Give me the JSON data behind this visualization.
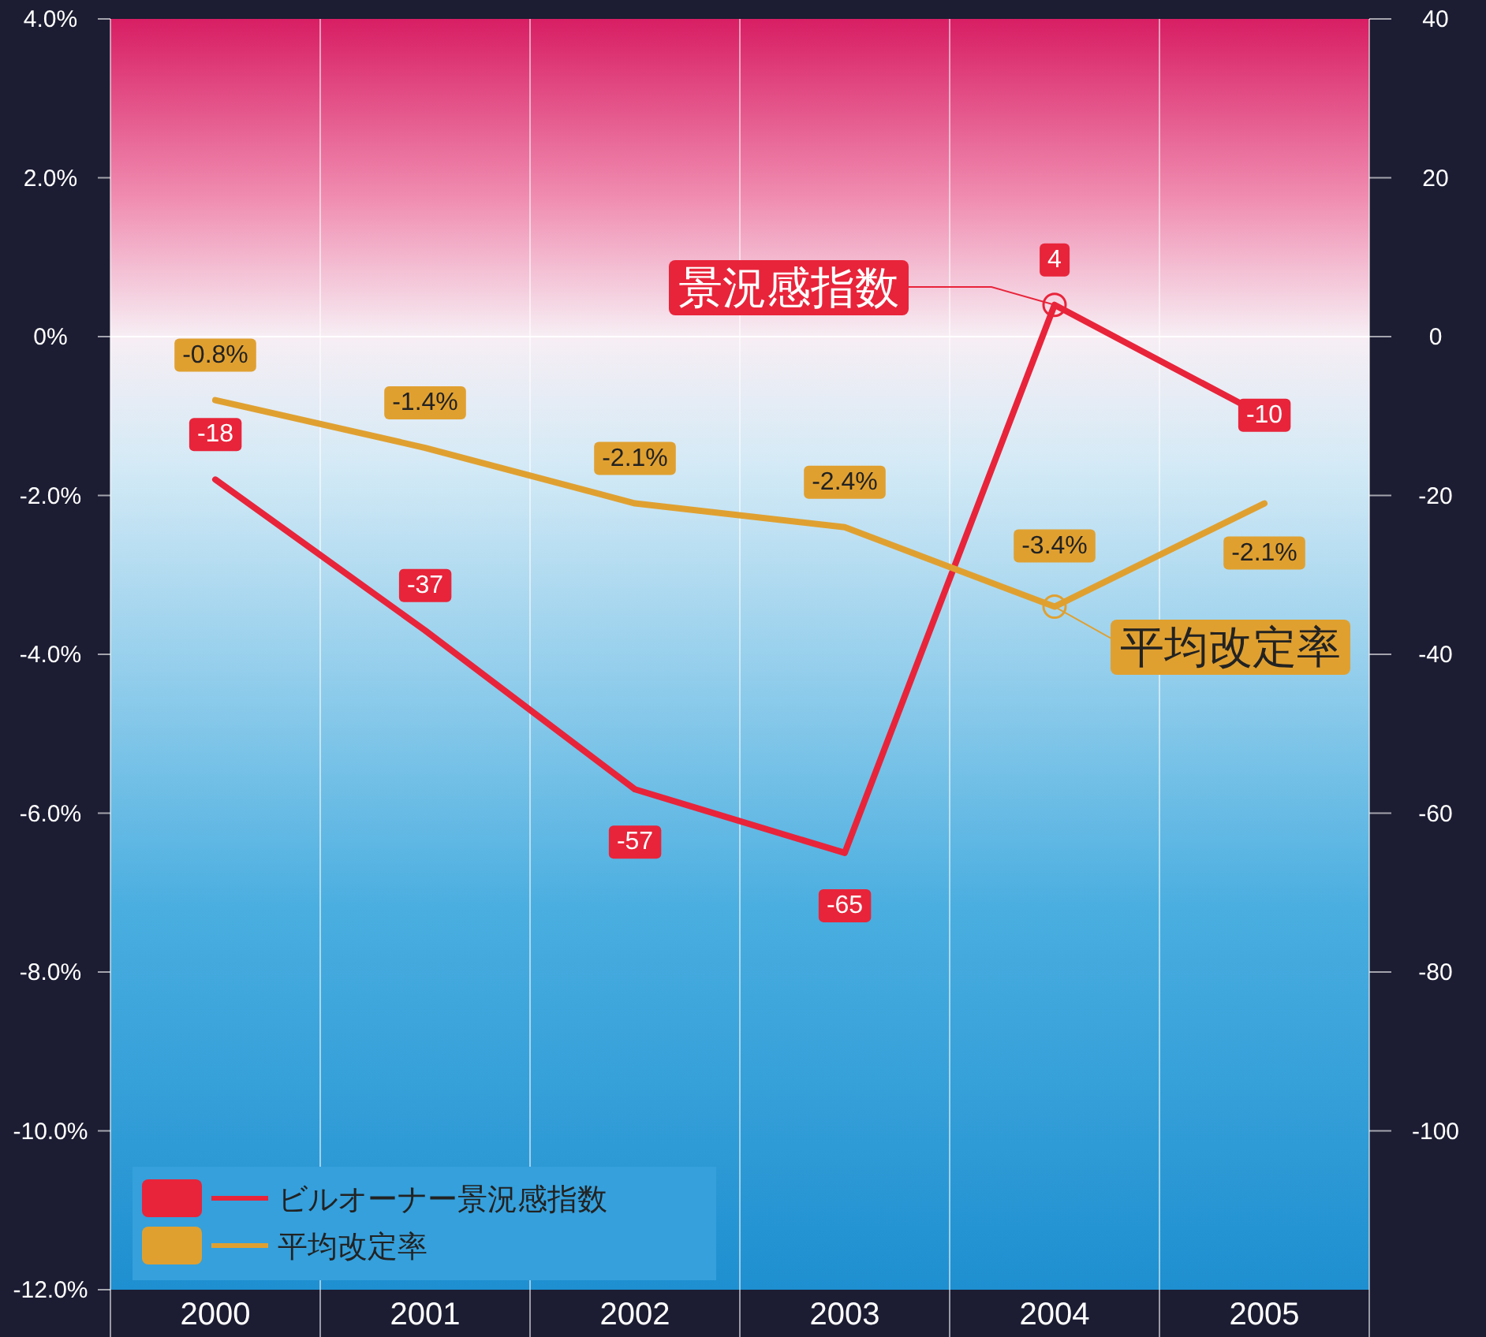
{
  "chart_data": {
    "type": "line",
    "categories": [
      "2000",
      "2001",
      "2002",
      "2003",
      "2004",
      "2005"
    ],
    "series": [
      {
        "name": "ビルオーナー景況感指数",
        "color": "#e8243a",
        "axis": "y2",
        "values": [
          -18,
          -37,
          -57,
          -65,
          4,
          -10
        ],
        "value_labels": [
          "-18",
          "-37",
          "-57",
          "-65",
          "4",
          "-10"
        ]
      },
      {
        "name": "平均改定率",
        "color": "#e0a030",
        "values": [
          -0.8,
          -1.4,
          -2.1,
          -2.4,
          -3.4,
          -2.1
        ],
        "value_labels": [
          "-0.8%",
          "-1.4%",
          "-2.1%",
          "-2.4%",
          "-3.4%",
          "-2.1%"
        ]
      }
    ],
    "ylim": [
      -12,
      4
    ],
    "yticks": [
      {
        "value": 4,
        "label": "4.0%"
      },
      {
        "value": 2,
        "label": "2.0%"
      },
      {
        "value": 0,
        "label": "0%"
      },
      {
        "value": -2,
        "label": "-2.0%"
      },
      {
        "value": -4,
        "label": "-4.0%"
      },
      {
        "value": -6,
        "label": "-6.0%"
      },
      {
        "value": -8,
        "label": "-8.0%"
      },
      {
        "value": -10,
        "label": "-10.0%"
      },
      {
        "value": -12,
        "label": "-12.0%"
      }
    ],
    "y2lim": [
      -120,
      40
    ],
    "y2ticks": [
      40,
      20,
      0,
      -20,
      -40,
      -60,
      -80,
      -100
    ],
    "ref_lines": [
      {
        "axis": "y",
        "value": 0,
        "color": "#ffffff"
      }
    ],
    "annotations": [
      {
        "text": "景況感指数",
        "x": "2004",
        "y": 0.4
      },
      {
        "text": "平均改定率",
        "x": "2004",
        "y": -3.4
      }
    ],
    "grid": "x",
    "legend": "bottom left",
    "marker": "none",
    "line_style": "solid"
  }
}
